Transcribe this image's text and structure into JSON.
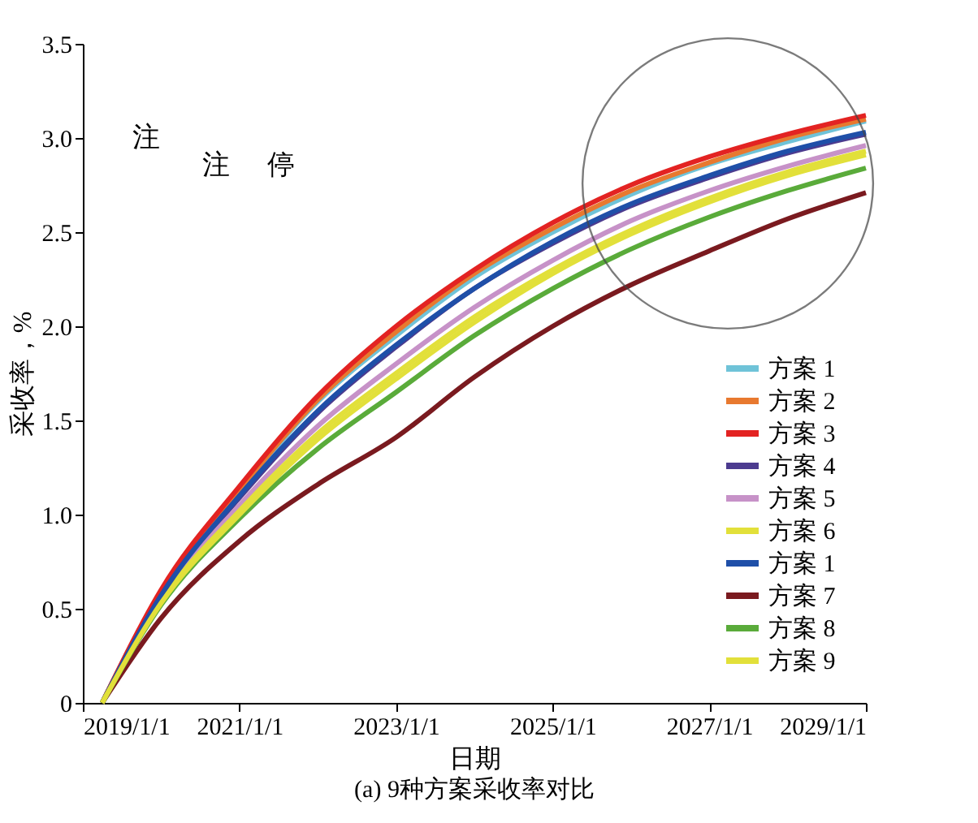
{
  "chart_data": {
    "type": "line",
    "xlabel": "日期",
    "ylabel": "采收率，%",
    "subtitle": "(a) 9种方案采收率对比",
    "x": [
      "2019-04-01",
      "2020-01-01",
      "2021-01-01",
      "2022-01-01",
      "2023-01-01",
      "2024-01-01",
      "2025-01-01",
      "2026-01-01",
      "2027-01-01",
      "2028-01-01",
      "2029-01-01"
    ],
    "series": [
      {
        "name": "方案 1",
        "color": "#6fc3d8",
        "values": [
          0,
          0.58,
          1.12,
          1.6,
          1.95,
          2.26,
          2.5,
          2.7,
          2.86,
          2.98,
          3.09
        ]
      },
      {
        "name": "方案 2",
        "color": "#e8792f",
        "values": [
          0,
          0.59,
          1.13,
          1.61,
          1.97,
          2.28,
          2.52,
          2.72,
          2.87,
          3.0,
          3.1
        ]
      },
      {
        "name": "方案 3",
        "color": "#e32322",
        "values": [
          0,
          0.6,
          1.15,
          1.63,
          2.0,
          2.3,
          2.55,
          2.75,
          2.9,
          3.02,
          3.12
        ]
      },
      {
        "name": "方案 4",
        "color": "#4c3b8f",
        "values": [
          0,
          0.57,
          1.09,
          1.54,
          1.89,
          2.2,
          2.44,
          2.64,
          2.79,
          2.92,
          3.02
        ]
      },
      {
        "name": "方案 5",
        "color": "#c792c8",
        "values": [
          0,
          0.55,
          1.05,
          1.47,
          1.8,
          2.1,
          2.35,
          2.56,
          2.72,
          2.85,
          2.96
        ]
      },
      {
        "name": "方案 6",
        "color": "#e2e03a",
        "values": [
          0,
          0.54,
          1.02,
          1.43,
          1.75,
          2.05,
          2.3,
          2.51,
          2.68,
          2.82,
          2.93
        ]
      },
      {
        "name": "方案 1",
        "color": "#1f4fa8",
        "values": [
          0,
          0.57,
          1.1,
          1.55,
          1.9,
          2.2,
          2.45,
          2.65,
          2.8,
          2.93,
          3.03
        ]
      },
      {
        "name": "方案 7",
        "color": "#7a1a1f",
        "values": [
          0,
          0.45,
          0.86,
          1.16,
          1.41,
          1.73,
          2.0,
          2.22,
          2.4,
          2.57,
          2.71
        ]
      },
      {
        "name": "方案 8",
        "color": "#5aab3a",
        "values": [
          0,
          0.52,
          0.98,
          1.35,
          1.65,
          1.95,
          2.2,
          2.41,
          2.58,
          2.72,
          2.84
        ]
      },
      {
        "name": "方案 9",
        "color": "#e2e03a",
        "values": [
          0,
          0.53,
          1.0,
          1.4,
          1.72,
          2.02,
          2.28,
          2.49,
          2.66,
          2.8,
          2.91
        ]
      }
    ],
    "xlim": [
      "2019-01-01",
      "2029-01-01"
    ],
    "xticks": [
      {
        "value": "2019-01-01",
        "label": "2019/1/1"
      },
      {
        "value": "2021-01-01",
        "label": "2021/1/1"
      },
      {
        "value": "2023-01-01",
        "label": "2023/1/1"
      },
      {
        "value": "2025-01-01",
        "label": "2025/1/1"
      },
      {
        "value": "2027-01-01",
        "label": "2027/1/1"
      },
      {
        "value": "2029-01-01",
        "label": "2029/1/1"
      }
    ],
    "ylim": [
      0,
      3.5
    ],
    "yticks": [
      {
        "value": 0,
        "label": "0"
      },
      0.5,
      {
        "value": 1,
        "label": "1.0"
      },
      1.5,
      {
        "value": 2,
        "label": "2.0"
      },
      2.5,
      {
        "value": 3,
        "label": "3.0"
      },
      3.5
    ],
    "grid": false,
    "legend": "bottom right",
    "line_style": "solid",
    "marker": "none",
    "annotations": [
      "注",
      "注",
      "停"
    ]
  }
}
